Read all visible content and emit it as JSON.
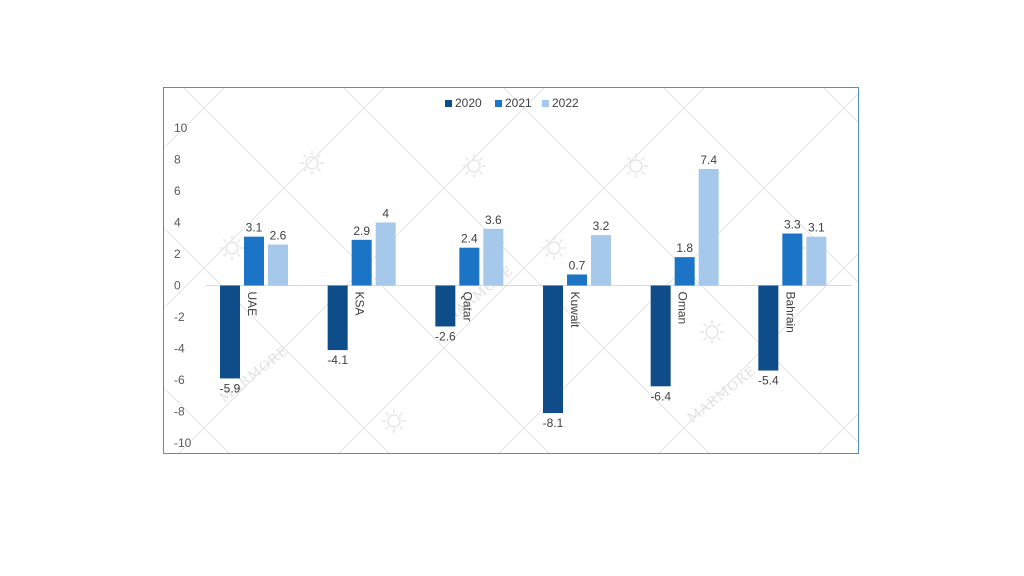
{
  "chart_data": {
    "type": "bar",
    "categories": [
      "UAE",
      "KSA",
      "Qatar",
      "Kuwait",
      "Oman",
      "Bahrain"
    ],
    "series": [
      {
        "name": "2020",
        "values": [
          -5.9,
          -4.1,
          -2.6,
          -8.1,
          -6.4,
          -5.4
        ]
      },
      {
        "name": "2021",
        "values": [
          3.1,
          2.9,
          2.4,
          0.7,
          1.8,
          3.3
        ]
      },
      {
        "name": "2022",
        "values": [
          2.6,
          4,
          3.6,
          3.2,
          7.4,
          3.1
        ]
      }
    ],
    "yticks": [
      10,
      8,
      6,
      4,
      2,
      0,
      -2,
      -4,
      -6,
      -8,
      -10
    ],
    "ylim": [
      -10,
      10
    ],
    "legend_position": "top",
    "grid": false,
    "colors": [
      "#0f4c8a",
      "#1b74c5",
      "#a6c8ea"
    ],
    "watermark": "MARMORE"
  }
}
